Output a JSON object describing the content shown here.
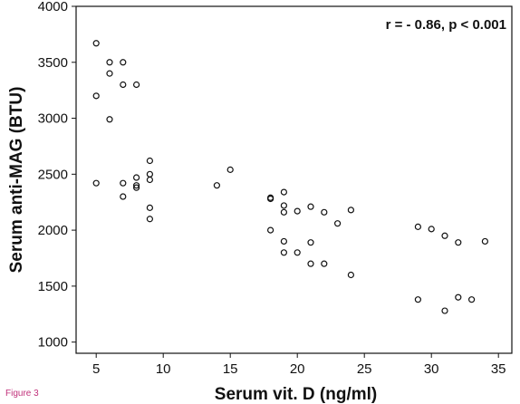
{
  "figure_caption": "Figure 3",
  "colors": {
    "axis": "#111111",
    "marker_stroke": "#111111",
    "caption": "#c0307a",
    "background": "#ffffff"
  },
  "chart_data": {
    "type": "scatter",
    "title": "",
    "xlabel": "Serum vit. D (ng/ml)",
    "ylabel": "Serum anti-MAG (BTU)",
    "annotation": "r = - 0.86, p < 0.001",
    "xlim": [
      3.5,
      36
    ],
    "ylim": [
      900,
      4000
    ],
    "xticks": [
      5,
      10,
      15,
      20,
      25,
      30,
      35
    ],
    "yticks": [
      1000,
      1500,
      2000,
      2500,
      3000,
      3500,
      4000
    ],
    "grid": false,
    "marker": "open-circle",
    "points": [
      [
        5,
        3670
      ],
      [
        5,
        3200
      ],
      [
        5,
        2420
      ],
      [
        6,
        3500
      ],
      [
        6,
        3400
      ],
      [
        6,
        2990
      ],
      [
        7,
        3500
      ],
      [
        7,
        3300
      ],
      [
        7,
        2420
      ],
      [
        7,
        2300
      ],
      [
        8,
        3300
      ],
      [
        8,
        2470
      ],
      [
        8,
        2400
      ],
      [
        8,
        2380
      ],
      [
        9,
        2620
      ],
      [
        9,
        2500
      ],
      [
        9,
        2450
      ],
      [
        9,
        2200
      ],
      [
        9,
        2100
      ],
      [
        14,
        2400
      ],
      [
        15,
        2540
      ],
      [
        18,
        2290
      ],
      [
        18,
        2280
      ],
      [
        18,
        2000
      ],
      [
        19,
        2340
      ],
      [
        19,
        2220
      ],
      [
        19,
        2160
      ],
      [
        19,
        1900
      ],
      [
        19,
        1800
      ],
      [
        20,
        2170
      ],
      [
        20,
        1800
      ],
      [
        21,
        2210
      ],
      [
        21,
        1890
      ],
      [
        21,
        1700
      ],
      [
        22,
        2160
      ],
      [
        22,
        1700
      ],
      [
        23,
        2060
      ],
      [
        24,
        2180
      ],
      [
        24,
        1600
      ],
      [
        29,
        2030
      ],
      [
        29,
        1380
      ],
      [
        30,
        2010
      ],
      [
        31,
        1950
      ],
      [
        31,
        1280
      ],
      [
        32,
        1890
      ],
      [
        32,
        1400
      ],
      [
        33,
        1380
      ],
      [
        34,
        1900
      ]
    ]
  }
}
